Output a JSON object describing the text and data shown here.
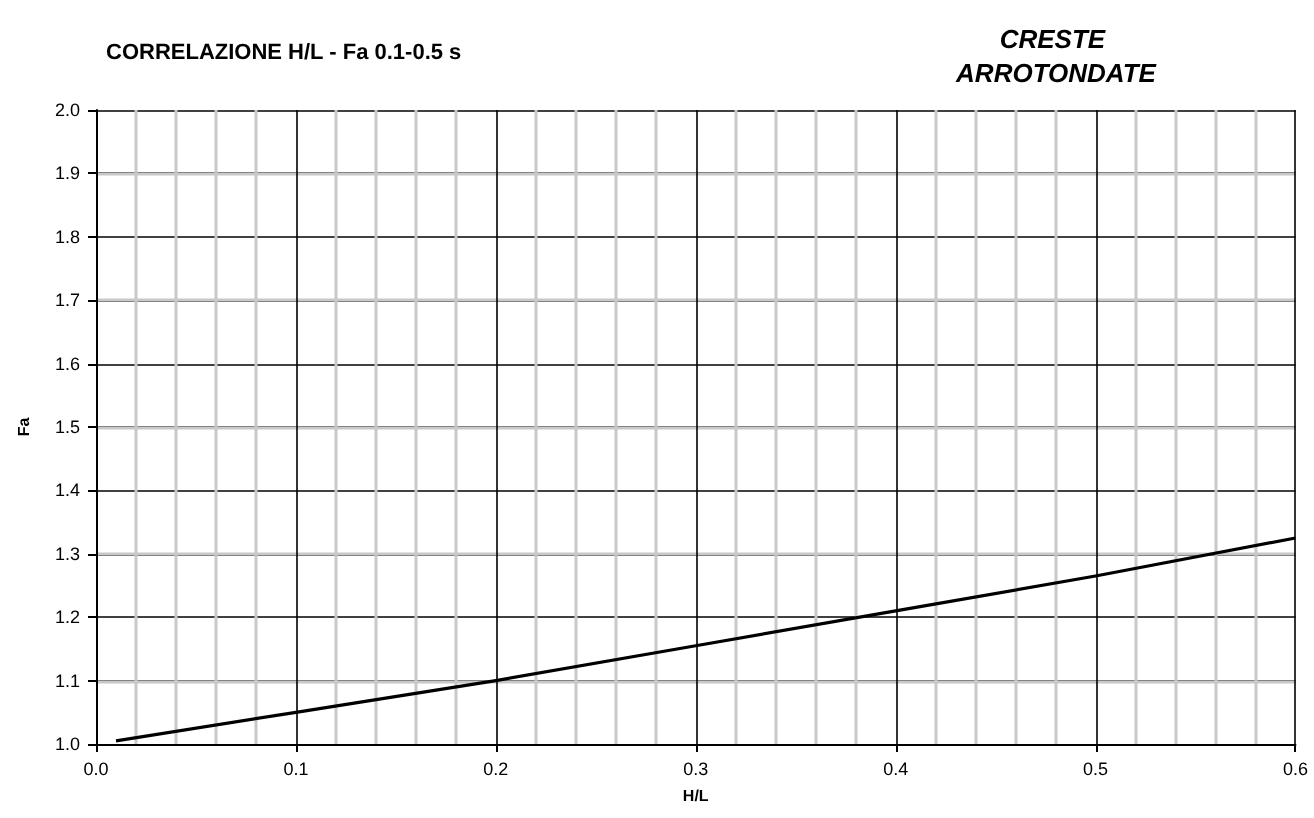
{
  "chart_data": {
    "type": "line",
    "title": "CORRELAZIONE H/L - Fa 0.1-0.5 s",
    "subtitle": "CRESTE ARROTONDATE",
    "xlabel": "H/L",
    "ylabel": "Fa",
    "x": [
      0.01,
      0.1,
      0.2,
      0.3,
      0.4,
      0.5,
      0.6
    ],
    "series": [
      {
        "color": "#000000",
        "values": [
          1.005,
          1.05,
          1.1,
          1.155,
          1.21,
          1.265,
          1.325
        ]
      }
    ],
    "xlim": [
      0,
      0.6
    ],
    "xticks": [
      {
        "value": 0,
        "label": "0.0"
      },
      {
        "value": 0.1,
        "label": "0.1"
      },
      {
        "value": 0.2,
        "label": "0.2"
      },
      {
        "value": 0.3,
        "label": "0.3"
      },
      {
        "value": 0.4,
        "label": "0.4"
      },
      {
        "value": 0.5,
        "label": "0.5"
      },
      {
        "value": 0.6,
        "label": "0.6"
      }
    ],
    "ylim": [
      1,
      2
    ],
    "yticks": [
      {
        "value": 1,
        "label": "1.0"
      },
      {
        "value": 1.1,
        "label": "1.1"
      },
      {
        "value": 1.2,
        "label": "1.2"
      },
      {
        "value": 1.3,
        "label": "1.3"
      },
      {
        "value": 1.4,
        "label": "1.4"
      },
      {
        "value": 1.5,
        "label": "1.5"
      },
      {
        "value": 1.6,
        "label": "1.6"
      },
      {
        "value": 1.7,
        "label": "1.7"
      },
      {
        "value": 1.8,
        "label": "1.8"
      },
      {
        "value": 1.9,
        "label": "1.9"
      },
      {
        "value": 2,
        "label": "2.0"
      }
    ],
    "grid": true,
    "marker": "none",
    "line_style": "solid"
  }
}
